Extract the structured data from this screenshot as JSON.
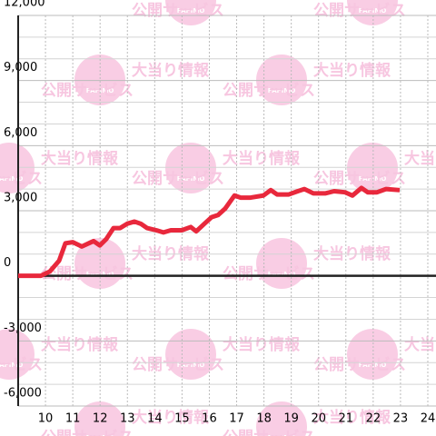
{
  "chart_data": {
    "type": "line",
    "watermark": {
      "logo": "PAPIMO",
      "line1": "大当り情報",
      "line2": "公開サービス"
    },
    "x": [
      9.0,
      9.83,
      10.16,
      10.5,
      10.73,
      11.0,
      11.33,
      11.76,
      11.99,
      12.23,
      12.49,
      12.73,
      12.99,
      13.26,
      13.49,
      13.72,
      14.06,
      14.32,
      14.59,
      14.99,
      15.32,
      15.52,
      15.82,
      16.08,
      16.32,
      16.58,
      16.92,
      17.15,
      17.48,
      17.98,
      18.25,
      18.48,
      18.91,
      19.24,
      19.48,
      19.81,
      20.24,
      20.57,
      20.97,
      21.24,
      21.57,
      21.8,
      22.14,
      22.47,
      22.97
    ],
    "series": [
      {
        "color": "#e8283c",
        "values": [
          0,
          0,
          200,
          700,
          1500,
          1550,
          1350,
          1600,
          1400,
          1700,
          2200,
          2200,
          2400,
          2500,
          2400,
          2200,
          2100,
          2000,
          2100,
          2100,
          2250,
          2050,
          2400,
          2700,
          2800,
          3100,
          3700,
          3600,
          3600,
          3700,
          3950,
          3750,
          3750,
          3900,
          4000,
          3800,
          3800,
          3900,
          3850,
          3700,
          4050,
          3850,
          3850,
          4000,
          3950
        ]
      }
    ],
    "xlim": [
      9,
      24.3
    ],
    "ylim": [
      -6000,
      12000
    ],
    "xticks": [
      10,
      11,
      12,
      13,
      14,
      15,
      16,
      17,
      18,
      19,
      20,
      21,
      22,
      23,
      24
    ],
    "yticks": [
      {
        "value": -6000,
        "label": "-6,000"
      },
      {
        "value": -3000,
        "label": "-3,000"
      },
      0,
      {
        "value": 3000,
        "label": "3,000"
      },
      {
        "value": 6000,
        "label": "6,000"
      },
      {
        "value": 9000,
        "label": "9,000"
      },
      {
        "value": 12000,
        "label": "12,000"
      }
    ],
    "y_minor_ticks": [
      -5000,
      -4000,
      -2000,
      -1000,
      1000,
      2000,
      4000,
      5000,
      7000,
      8000,
      10000,
      11000
    ],
    "grid": true
  }
}
